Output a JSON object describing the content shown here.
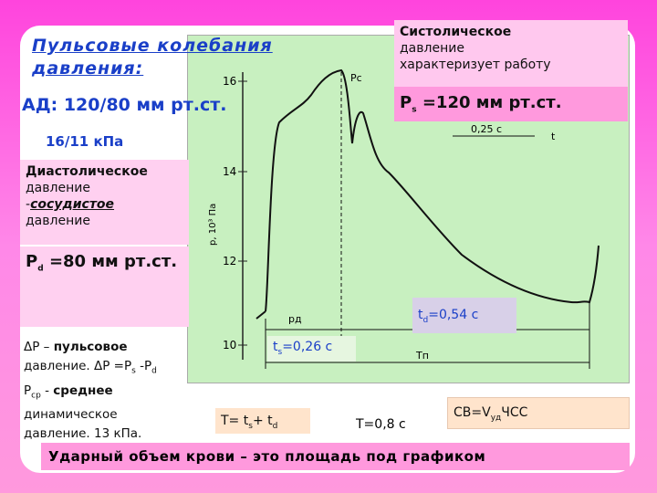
{
  "title": "Пульсовые колебания давления:",
  "bp": "АД: 120/80 мм рт.ст.",
  "kpa": "16/11 кПа",
  "systolic": [
    "Систолическое",
    "давление",
    "характеризует работу"
  ],
  "ps": [
    "P",
    "s",
    "=120 мм рт.ст."
  ],
  "diastolic": [
    "Диастолическое",
    "давление",
    "-",
    "сосудистое",
    "давление"
  ],
  "pd": [
    "P",
    "d",
    "=80 мм рт.ст."
  ],
  "dp": [
    "ΔP –",
    "пульсовое",
    "давление. ΔP =P",
    "s",
    " -P",
    "d"
  ],
  "pmean": [
    "P",
    "ср",
    "-",
    "среднее",
    "динамическое",
    "давление. 13 кПа."
  ],
  "td": [
    "t",
    "d",
    "=0,54 с"
  ],
  "ts": [
    "t",
    "s",
    "=0,26 с"
  ],
  "tsum": [
    "T= t",
    "s",
    "+  t",
    "d"
  ],
  "tval": "T=0,8 с",
  "cb": [
    "CB=V",
    "уд",
    "ЧСС"
  ],
  "footer": "Ударный объем крови – это площадь под графиком",
  "figure": {
    "ticks": [
      "16",
      "14",
      "12",
      "10"
    ],
    "y_label": "p, 10³ Па",
    "scale": "0,25 с",
    "t_label": "t",
    "pc_label": "Pc",
    "pd_label": "pд",
    "tn_label": "Tп"
  }
}
